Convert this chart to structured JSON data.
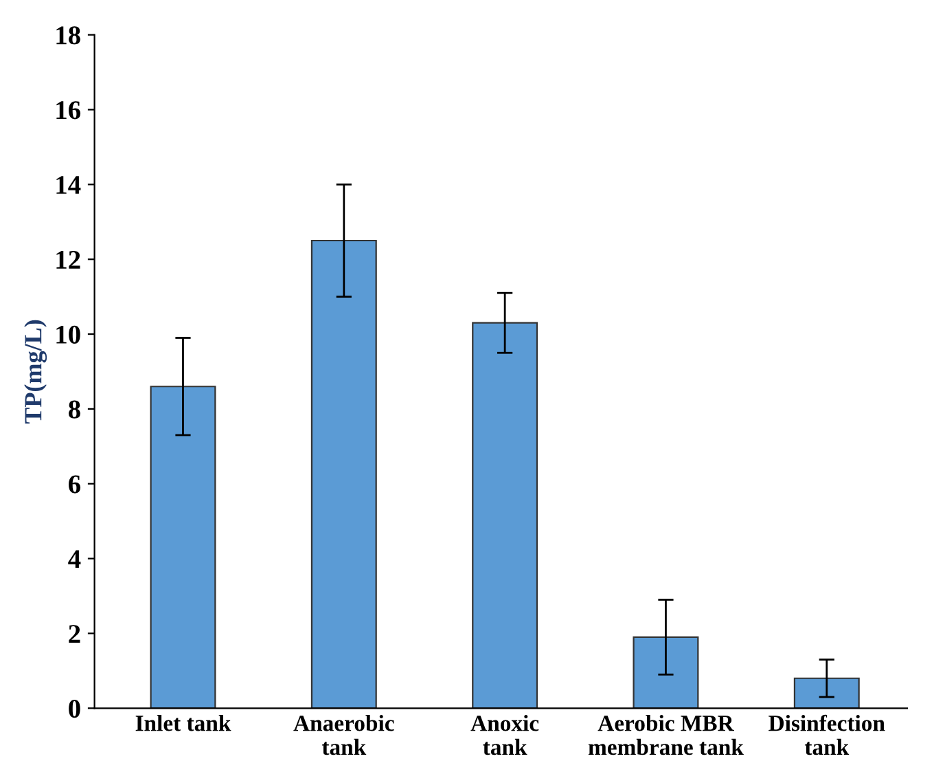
{
  "chart_data": {
    "type": "bar",
    "ylabel": "TP(mg/L)",
    "categories": [
      "Inlet tank",
      "Anaerobic\ntank",
      "Anoxic\ntank",
      "Aerobic MBR\nmembrane tank",
      "Disinfection\ntank"
    ],
    "values": [
      8.6,
      12.5,
      10.3,
      1.9,
      0.8
    ],
    "errors": [
      1.3,
      1.5,
      0.8,
      1.0,
      0.5
    ],
    "color": "#5b9bd5",
    "ylim": [
      0,
      18
    ],
    "yticks": [
      0,
      2,
      4,
      6,
      8,
      10,
      12,
      14,
      16,
      18
    ],
    "grid": false,
    "legend": false
  }
}
